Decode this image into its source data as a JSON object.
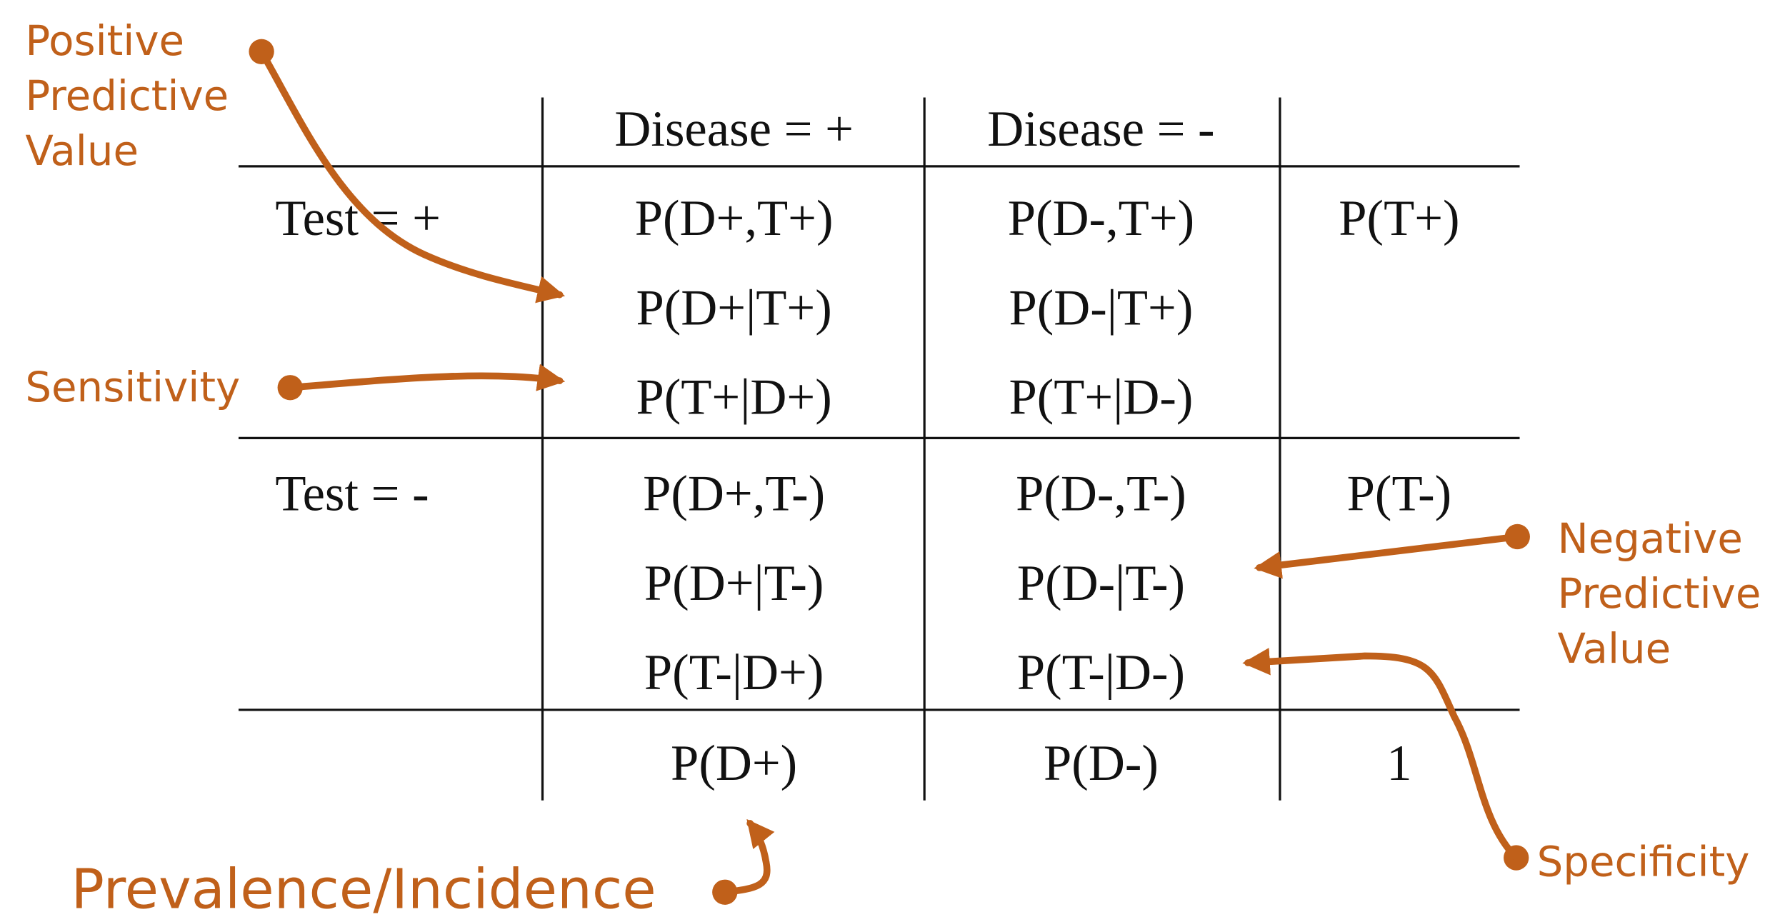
{
  "table": {
    "header": [
      "Disease = +",
      "Disease = -"
    ],
    "rows": [
      {
        "label": "Test = +",
        "cells": [
          [
            "P(D+,T+)",
            "P(D+|T+)",
            "P(T+|D+)"
          ],
          [
            "P(D-,T+)",
            "P(D-|T+)",
            "P(T+|D-)"
          ]
        ],
        "total": "P(T+)"
      },
      {
        "label": "Test = -",
        "cells": [
          [
            "P(D+,T-)",
            "P(D+|T-)",
            "P(T-|D+)"
          ],
          [
            "P(D-,T-)",
            "P(D-|T-)",
            "P(T-|D-)"
          ]
        ],
        "total": "P(T-)"
      }
    ],
    "totals": [
      "P(D+)",
      "P(D-)",
      "1"
    ]
  },
  "annotations": {
    "ppv": [
      "Positive",
      "Predictive",
      "Value"
    ],
    "sensitivity": "Sensitivity",
    "npv": [
      "Negative",
      "Predictive",
      "Value"
    ],
    "specificity": "Specificity",
    "prevalence": "Prevalence/Incidence"
  }
}
